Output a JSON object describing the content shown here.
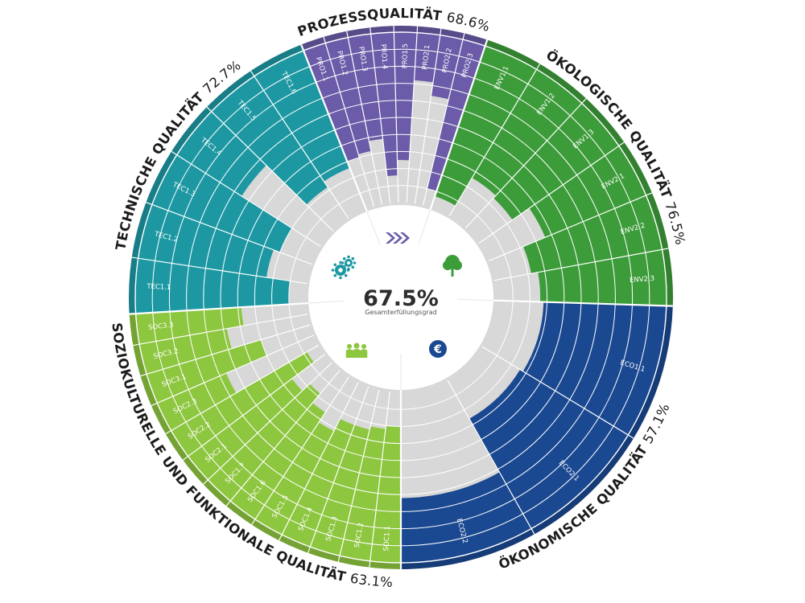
{
  "chart_data": {
    "type": "radial-bar",
    "total": {
      "value": "67.5%",
      "label": "Gesamterfüllungsgrad"
    },
    "ring_levels": 10,
    "categories": [
      {
        "key": "PRO",
        "name": "PROZESSQUALITÄT",
        "percent": "68.6%",
        "color": "#6b5ba8",
        "icon": "arrows-icon",
        "criteria": [
          {
            "label": "PRO1.1",
            "value": 70
          },
          {
            "label": "PRO1.2",
            "value": 68
          },
          {
            "label": "PRO1.3",
            "value": 62
          },
          {
            "label": "PRO1.4",
            "value": 84
          },
          {
            "label": "PRO1.5",
            "value": 75
          },
          {
            "label": "PRO2.1",
            "value": 28
          },
          {
            "label": "PRO2.2",
            "value": 36
          },
          {
            "label": "PRO2.3",
            "value": 90
          }
        ]
      },
      {
        "key": "ENV",
        "name": "ÖKOLOGISCHE QUALITÄT",
        "percent": "76.5%",
        "color": "#3d9c3a",
        "icon": "tree-icon",
        "criteria": [
          {
            "label": "ENV1.1",
            "value": 93
          },
          {
            "label": "ENV1.2",
            "value": 74
          },
          {
            "label": "ENV1.3",
            "value": 76
          },
          {
            "label": "ENV2.1",
            "value": 64
          },
          {
            "label": "ENV2.2",
            "value": 78
          },
          {
            "label": "ENV2.3",
            "value": 74
          }
        ]
      },
      {
        "key": "ECO",
        "name": "ÖKONOMISCHE QUALITÄT",
        "percent": "57.1%",
        "color": "#1b4991",
        "icon": "euro-icon",
        "criteria": [
          {
            "label": "ECO1.1",
            "value": 72
          },
          {
            "label": "ECO2.1",
            "value": 74
          },
          {
            "label": "ECO2.2",
            "value": 38
          }
        ]
      },
      {
        "key": "SOC",
        "name": "SOZIOKULTURELLE UND FUNKTIONALE QUALITÄT",
        "percent": "63.1%",
        "color": "#8dc63f",
        "icon": "people-icon",
        "criteria": [
          {
            "label": "SOC1.1",
            "value": 80
          },
          {
            "label": "SOC1.2",
            "value": 78
          },
          {
            "label": "SOC1.3",
            "value": 76
          },
          {
            "label": "SOC1.4",
            "value": 76
          },
          {
            "label": "SOC1.5",
            "value": 68
          },
          {
            "label": "SOC1.6",
            "value": 75
          },
          {
            "label": "SOC1.7",
            "value": 82
          },
          {
            "label": "SOC2.1",
            "value": 76
          },
          {
            "label": "SOC2.2",
            "value": 92
          },
          {
            "label": "SOC2.3",
            "value": 44
          },
          {
            "label": "SOC3.1",
            "value": 70
          },
          {
            "label": "SOC3.2",
            "value": 52
          },
          {
            "label": "SOC3.3",
            "value": 62
          }
        ]
      },
      {
        "key": "TEC",
        "name": "TECHNISCHE QUALITÄT",
        "percent": "72.7%",
        "color": "#1d98a3",
        "icon": "gears-icon",
        "criteria": [
          {
            "label": "TEC1.1",
            "value": 90
          },
          {
            "label": "TEC1.2",
            "value": 76
          },
          {
            "label": "TEC1.3",
            "value": 80
          },
          {
            "label": "TEC1.4",
            "value": 45
          },
          {
            "label": "TEC1.5",
            "value": 78
          },
          {
            "label": "TEC1.6",
            "value": 74
          }
        ]
      }
    ]
  }
}
